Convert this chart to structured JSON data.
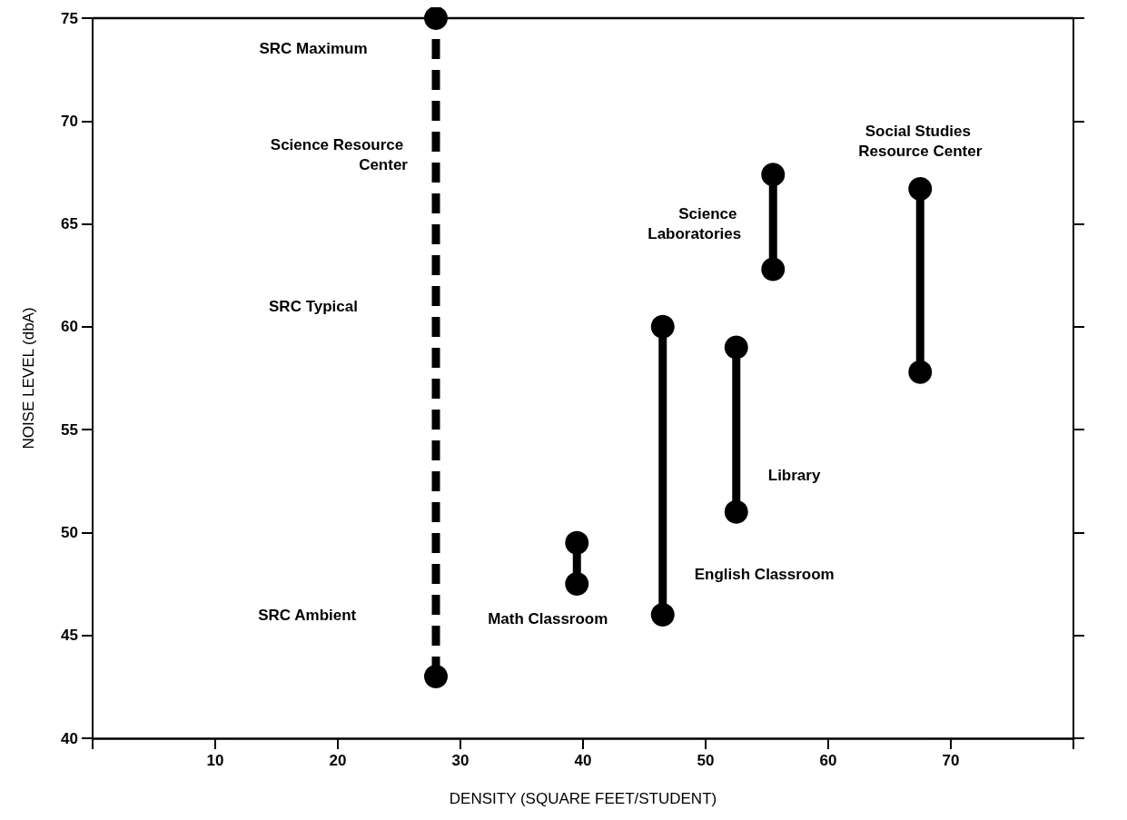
{
  "chart_data": {
    "type": "line",
    "xlabel": "DENSITY (SQUARE FEET/STUDENT)",
    "ylabel": "NOISE LEVEL (dbA)",
    "xlim": [
      0,
      80
    ],
    "xticks": [
      {
        "value": 0,
        "label": null
      },
      10,
      20,
      30,
      40,
      50,
      60,
      70,
      {
        "value": 80,
        "label": null
      }
    ],
    "ylim": [
      40,
      75
    ],
    "yticks": [
      40,
      45,
      50,
      55,
      60,
      65,
      70,
      75
    ],
    "grid": false,
    "legend": false,
    "marker": "circle",
    "annotations": [
      "SRC Maximum",
      "SRC Typical",
      "SRC Ambient"
    ],
    "series": [
      {
        "name": "Science Resource Center",
        "color": "#000000",
        "x": [
          28,
          28
        ],
        "values": [
          43,
          75
        ],
        "line_style": "dashed"
      },
      {
        "name": "Math Classroom",
        "color": "#000000",
        "x": [
          39.5,
          39.5
        ],
        "values": [
          47.5,
          49.5
        ],
        "line_style": "solid"
      },
      {
        "name": "English Classroom",
        "color": "#000000",
        "x": [
          46.5,
          46.5
        ],
        "values": [
          46,
          60
        ],
        "line_style": "solid"
      },
      {
        "name": "Library",
        "color": "#000000",
        "x": [
          52.5,
          52.5
        ],
        "values": [
          51,
          59
        ],
        "line_style": "solid"
      },
      {
        "name": "Science Laboratories",
        "color": "#000000",
        "x": [
          55.5,
          55.5
        ],
        "values": [
          62.8,
          67.4
        ],
        "line_style": "solid"
      },
      {
        "name": "Social Studies Resource Center",
        "color": "#000000",
        "x": [
          67.5,
          67.5
        ],
        "values": [
          57.8,
          66.7
        ],
        "line_style": "solid"
      }
    ]
  }
}
